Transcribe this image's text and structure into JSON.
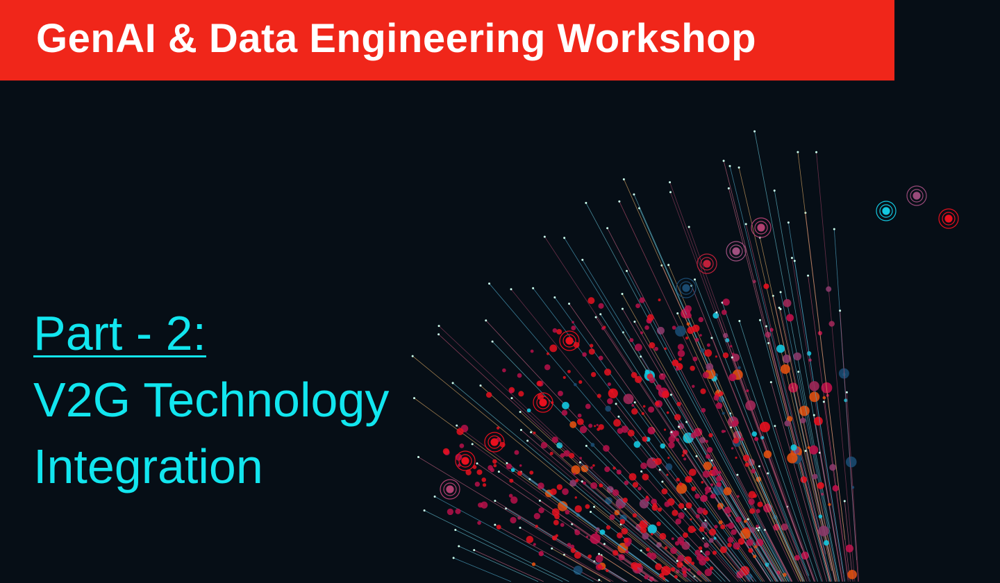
{
  "header": {
    "title": "GenAI & Data Engineering Workshop"
  },
  "slide": {
    "part_label": "Part - 2:",
    "title_line1": "V2G Technology",
    "title_line2": "Integration"
  },
  "colors": {
    "header_bg": "#f0261a",
    "background": "#060e16",
    "title": "#12e6ef"
  },
  "decoration": {
    "icon": "data-burst-graphic"
  }
}
